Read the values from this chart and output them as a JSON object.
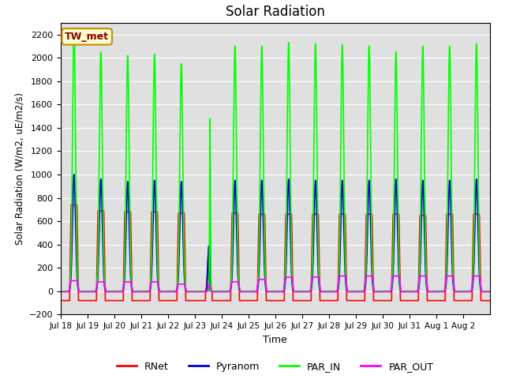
{
  "title": "Solar Radiation",
  "xlabel": "Time",
  "ylabel": "Solar Radiation (W/m2, uE/m2/s)",
  "ylim": [
    -200,
    2300
  ],
  "yticks": [
    -200,
    0,
    200,
    400,
    600,
    800,
    1000,
    1200,
    1400,
    1600,
    1800,
    2000,
    2200
  ],
  "bg_color": "#e0e0e0",
  "legend_labels": [
    "RNet",
    "Pyranom",
    "PAR_IN",
    "PAR_OUT"
  ],
  "legend_colors": [
    "#ff0000",
    "#0000cc",
    "#00ff00",
    "#ff00ff"
  ],
  "annotation_text": "TW_met",
  "annotation_bg": "#ffffcc",
  "annotation_border": "#cc8800",
  "annotation_text_color": "#880000",
  "line_width": 1.2,
  "num_days": 16,
  "points_per_day": 288,
  "tick_labels": [
    "Jul 18",
    "Jul 19",
    "Jul 20",
    "Jul 21",
    "Jul 22",
    "Jul 23",
    "Jul 24",
    "Jul 25",
    "Jul 26",
    "Jul 27",
    "Jul 28",
    "Jul 29",
    "Jul 30",
    "Jul 31",
    "Aug 1",
    "Aug 2"
  ],
  "par_in_peaks": [
    2250,
    2050,
    2020,
    2030,
    1950,
    0,
    2100,
    2100,
    2130,
    2120,
    2110,
    2100,
    2050,
    2100,
    2100,
    2120
  ],
  "pyranom_peaks": [
    1000,
    960,
    940,
    950,
    940,
    0,
    950,
    950,
    960,
    950,
    950,
    950,
    960,
    950,
    950,
    960
  ],
  "rnet_peaks": [
    740,
    690,
    680,
    680,
    670,
    0,
    670,
    660,
    660,
    660,
    660,
    660,
    660,
    650,
    660,
    660
  ],
  "par_out_peaks": [
    90,
    80,
    80,
    80,
    60,
    0,
    80,
    100,
    120,
    120,
    130,
    130,
    130,
    130,
    130,
    130
  ],
  "rnet_night": -80,
  "par_out_night": -5,
  "cloud_day": 5,
  "cloud_partial_peak_par_in": 1480,
  "cloud_partial_peak_pyranom": 620,
  "cloud_partial_peak_rnet": 350,
  "cloud_partial_peak_par_out": 55
}
